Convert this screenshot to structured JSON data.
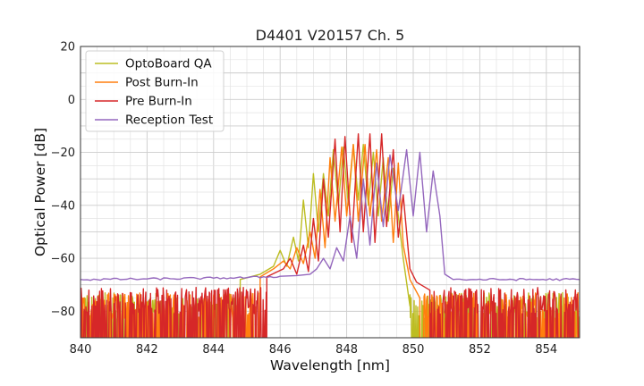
{
  "chart_data": {
    "type": "line",
    "title": "D4401 V20157 Ch. 5",
    "xlabel": "Wavelength [nm]",
    "ylabel": "Optical Power [dB]",
    "xlim": [
      840,
      855
    ],
    "ylim": [
      -90,
      20
    ],
    "xticks": [
      840,
      842,
      844,
      846,
      848,
      850,
      852,
      854
    ],
    "yticks": [
      -80,
      -60,
      -40,
      -20,
      0,
      20
    ],
    "grid": true,
    "minor_grid": true,
    "legend_position": "top-left",
    "series": [
      {
        "name": "OptoBoard QA",
        "color": "#bcbd22",
        "noise_floor": -82,
        "noisy_below_nm": 844.8,
        "noisy_above_nm": 849.9,
        "points": [
          [
            844.8,
            -68
          ],
          [
            845.4,
            -66
          ],
          [
            845.8,
            -63
          ],
          [
            846.0,
            -57
          ],
          [
            846.2,
            -63
          ],
          [
            846.4,
            -52
          ],
          [
            846.55,
            -61
          ],
          [
            846.7,
            -38
          ],
          [
            846.85,
            -56
          ],
          [
            847.0,
            -28
          ],
          [
            847.15,
            -50
          ],
          [
            847.3,
            -28
          ],
          [
            847.45,
            -44
          ],
          [
            847.6,
            -19
          ],
          [
            847.75,
            -40
          ],
          [
            847.9,
            -18
          ],
          [
            848.05,
            -40
          ],
          [
            848.2,
            -17
          ],
          [
            848.35,
            -38
          ],
          [
            848.5,
            -17
          ],
          [
            848.65,
            -40
          ],
          [
            848.8,
            -20
          ],
          [
            848.95,
            -44
          ],
          [
            849.1,
            -22
          ],
          [
            849.25,
            -46
          ],
          [
            849.4,
            -26
          ],
          [
            849.55,
            -44
          ],
          [
            849.7,
            -60
          ],
          [
            849.9,
            -78
          ]
        ]
      },
      {
        "name": "Post Burn-In",
        "color": "#ff7f0e",
        "noise_floor": -82,
        "noisy_below_nm": 845.4,
        "noisy_above_nm": 850.2,
        "points": [
          [
            845.4,
            -67
          ],
          [
            845.8,
            -64
          ],
          [
            846.1,
            -61
          ],
          [
            846.3,
            -64
          ],
          [
            846.5,
            -56
          ],
          [
            846.7,
            -62
          ],
          [
            846.9,
            -50
          ],
          [
            847.05,
            -60
          ],
          [
            847.2,
            -34
          ],
          [
            847.35,
            -56
          ],
          [
            847.5,
            -22
          ],
          [
            847.65,
            -46
          ],
          [
            847.85,
            -18
          ],
          [
            848.0,
            -44
          ],
          [
            848.2,
            -17
          ],
          [
            848.35,
            -46
          ],
          [
            848.55,
            -17
          ],
          [
            848.7,
            -44
          ],
          [
            848.9,
            -19
          ],
          [
            849.05,
            -46
          ],
          [
            849.25,
            -22
          ],
          [
            849.4,
            -54
          ],
          [
            849.55,
            -24
          ],
          [
            849.7,
            -55
          ],
          [
            849.9,
            -68
          ],
          [
            850.2,
            -75
          ]
        ]
      },
      {
        "name": "Pre Burn-In",
        "color": "#d62728",
        "noise_floor": -80,
        "noisy_below_nm": 845.6,
        "noisy_above_nm": 850.5,
        "points": [
          [
            845.6,
            -67
          ],
          [
            846.1,
            -64
          ],
          [
            846.3,
            -60
          ],
          [
            846.5,
            -66
          ],
          [
            846.7,
            -55
          ],
          [
            846.85,
            -65
          ],
          [
            847.0,
            -45
          ],
          [
            847.15,
            -61
          ],
          [
            847.3,
            -30
          ],
          [
            847.45,
            -52
          ],
          [
            847.65,
            -15
          ],
          [
            847.8,
            -50
          ],
          [
            847.95,
            -14
          ],
          [
            848.15,
            -54
          ],
          [
            848.35,
            -13
          ],
          [
            848.5,
            -50
          ],
          [
            848.7,
            -13
          ],
          [
            848.85,
            -54
          ],
          [
            849.05,
            -13
          ],
          [
            849.2,
            -48
          ],
          [
            849.4,
            -19
          ],
          [
            849.55,
            -52
          ],
          [
            849.7,
            -36
          ],
          [
            849.9,
            -64
          ],
          [
            850.1,
            -69
          ],
          [
            850.5,
            -72
          ]
        ]
      },
      {
        "name": "Reception Test",
        "color": "#9467bd",
        "points": [
          [
            840.0,
            -68
          ],
          [
            842.0,
            -67.8
          ],
          [
            844.0,
            -67.5
          ],
          [
            845.0,
            -67.3
          ],
          [
            846.0,
            -66.8
          ],
          [
            846.5,
            -66.5
          ],
          [
            846.9,
            -66
          ],
          [
            847.1,
            -64
          ],
          [
            847.3,
            -60
          ],
          [
            847.5,
            -64
          ],
          [
            847.7,
            -56
          ],
          [
            847.9,
            -61
          ],
          [
            848.1,
            -44
          ],
          [
            848.3,
            -60
          ],
          [
            848.5,
            -30
          ],
          [
            848.7,
            -55
          ],
          [
            848.9,
            -24
          ],
          [
            849.1,
            -48
          ],
          [
            849.3,
            -21
          ],
          [
            849.55,
            -42
          ],
          [
            849.8,
            -19
          ],
          [
            850.0,
            -44
          ],
          [
            850.2,
            -20
          ],
          [
            850.4,
            -50
          ],
          [
            850.6,
            -27
          ],
          [
            850.8,
            -44
          ],
          [
            850.95,
            -66
          ],
          [
            851.2,
            -68
          ],
          [
            853.0,
            -68
          ],
          [
            855.0,
            -68
          ]
        ]
      }
    ]
  }
}
